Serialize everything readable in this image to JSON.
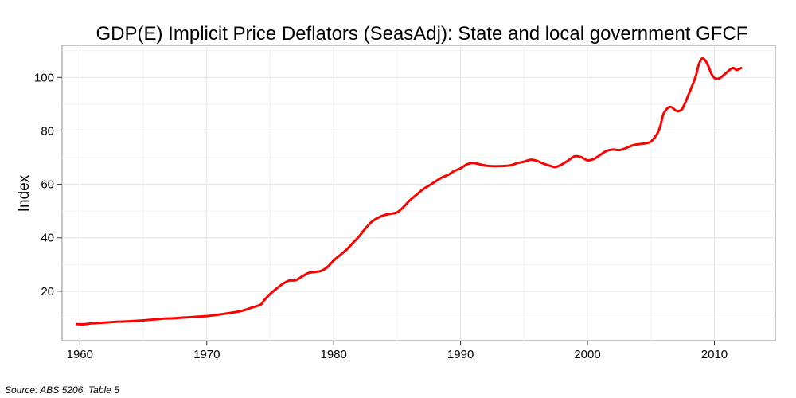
{
  "chart_data": {
    "type": "line",
    "title": "GDP(E) Implicit Price Deflators (SeasAdj): State and local government GFCF",
    "xlabel": "",
    "ylabel": "Index",
    "xlim": [
      1958.6,
      2014.8
    ],
    "ylim": [
      1.5,
      112
    ],
    "x_ticks": [
      1960,
      1970,
      1980,
      1990,
      2000,
      2010
    ],
    "y_ticks": [
      20,
      40,
      60,
      80,
      100
    ],
    "x_tick_labels": [
      "1960",
      "1970",
      "1980",
      "1990",
      "2000",
      "2010"
    ],
    "y_tick_labels": [
      "20",
      "40",
      "60",
      "80",
      "100"
    ],
    "grid": true,
    "series": [
      {
        "name": "State and local government GFCF",
        "color": "#ff0000",
        "x": [
          1959.75,
          1960.25,
          1961,
          1962,
          1963,
          1964,
          1965,
          1966,
          1966.75,
          1967.5,
          1968,
          1969,
          1970,
          1970.5,
          1971,
          1972,
          1972.5,
          1973,
          1973.5,
          1974.25,
          1974.5,
          1975,
          1975.5,
          1976,
          1976.5,
          1977,
          1977.5,
          1978,
          1978.5,
          1979,
          1979.5,
          1980,
          1980.5,
          1981,
          1981.5,
          1982,
          1982.5,
          1983,
          1983.5,
          1984,
          1984.5,
          1985,
          1985.5,
          1986,
          1986.5,
          1987,
          1987.5,
          1988,
          1988.5,
          1989,
          1989.5,
          1990,
          1990.5,
          1991,
          1991.5,
          1992,
          1992.5,
          1993,
          1993.5,
          1994,
          1994.5,
          1995,
          1995.5,
          1996,
          1996.5,
          1997,
          1997.5,
          1998,
          1998.5,
          1999,
          1999.5,
          2000,
          2000.5,
          2001,
          2001.5,
          2002,
          2002.5,
          2003,
          2003.5,
          2004,
          2004.5,
          2005,
          2005.5,
          2005.75,
          2006,
          2006.5,
          2007,
          2007.25,
          2007.5,
          2008,
          2008.5,
          2008.75,
          2009,
          2009.25,
          2009.5,
          2009.75,
          2010,
          2010.25,
          2010.5,
          2011,
          2011.25,
          2011.5,
          2011.75,
          2012.1
        ],
        "values": [
          7.7,
          7.6,
          8.0,
          8.3,
          8.6,
          8.8,
          9.1,
          9.5,
          9.8,
          9.9,
          10.1,
          10.4,
          10.7,
          11.0,
          11.3,
          12.0,
          12.4,
          13.0,
          13.8,
          15.0,
          16.5,
          19.0,
          21.0,
          22.8,
          24.0,
          24.1,
          25.5,
          26.8,
          27.2,
          27.6,
          29.0,
          31.5,
          33.5,
          35.5,
          38.0,
          40.5,
          43.5,
          46.0,
          47.5,
          48.5,
          49.0,
          49.5,
          51.5,
          54.0,
          56.0,
          58.0,
          59.5,
          61.0,
          62.5,
          63.5,
          65.0,
          66.0,
          67.5,
          68.0,
          67.5,
          67.0,
          66.8,
          66.8,
          66.9,
          67.2,
          68.0,
          68.5,
          69.2,
          68.8,
          67.8,
          67.0,
          66.5,
          67.5,
          69.0,
          70.5,
          70.2,
          69.0,
          69.5,
          71.0,
          72.5,
          73.0,
          72.8,
          73.5,
          74.5,
          75.0,
          75.3,
          76.0,
          79.0,
          82.0,
          86.5,
          89.0,
          87.5,
          87.5,
          88.5,
          94.0,
          100.0,
          104.5,
          107.0,
          106.5,
          104.5,
          101.5,
          99.8,
          99.5,
          100.0,
          102.0,
          103.0,
          103.5,
          102.8,
          103.5
        ]
      }
    ]
  },
  "footer": {
    "source": "Source: ABS 5206, Table 5"
  }
}
